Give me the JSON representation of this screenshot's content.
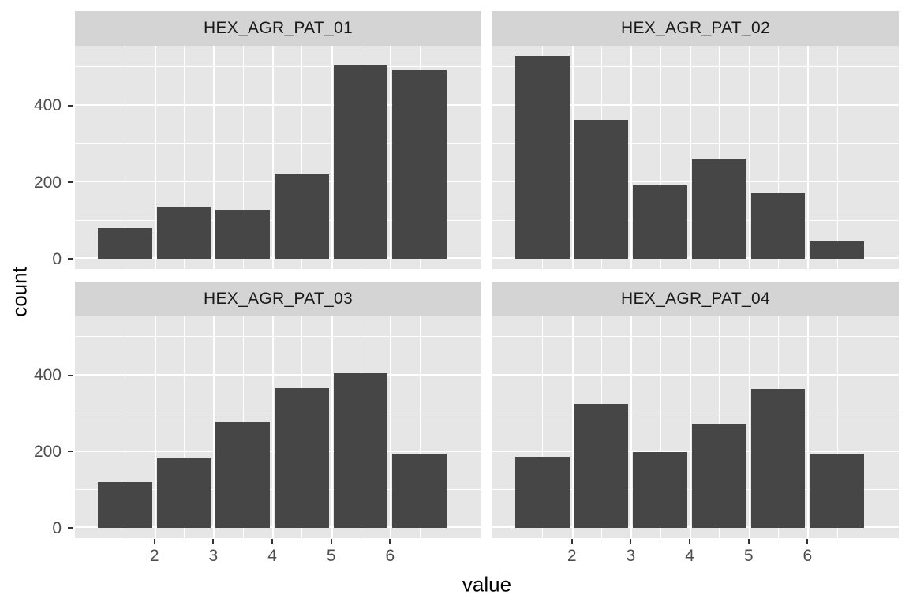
{
  "chart_data": {
    "type": "bar",
    "subtype": "faceted-histogram",
    "title": "",
    "xlabel": "value",
    "ylabel": "count",
    "x_ticks": [
      "2",
      "3",
      "4",
      "5",
      "6"
    ],
    "x_tick_values": [
      2,
      3,
      4,
      5,
      6
    ],
    "x_minor_values": [
      1.5,
      2.5,
      3.5,
      4.5,
      5.5,
      6.5
    ],
    "y_ticks": [
      "0",
      "200",
      "400"
    ],
    "y_tick_values": [
      0,
      200,
      400
    ],
    "y_minor_values": [
      100,
      300,
      500
    ],
    "x_range": [
      0.65,
      7.55
    ],
    "y_range": [
      -26,
      556
    ],
    "bin_centers": [
      1.5,
      2.5,
      3.5,
      4.5,
      5.5,
      6.5
    ],
    "bar_width": 0.92,
    "grid": "white major and minor gridlines on grey panel",
    "legend": "none",
    "facets": [
      {
        "label": "HEX_AGR_PAT_01",
        "values": [
          80,
          137,
          129,
          220,
          505,
          492
        ]
      },
      {
        "label": "HEX_AGR_PAT_02",
        "values": [
          530,
          362,
          192,
          260,
          172,
          47
        ]
      },
      {
        "label": "HEX_AGR_PAT_03",
        "values": [
          121,
          184,
          277,
          367,
          406,
          195
        ]
      },
      {
        "label": "HEX_AGR_PAT_04",
        "values": [
          187,
          324,
          199,
          273,
          365,
          195
        ]
      }
    ]
  },
  "colors": {
    "bar": "#464646",
    "panel_bg": "#E6E6E6",
    "strip_bg": "#D4D4D4",
    "grid": "#FFFFFF",
    "tick_mark": "#333333",
    "tick_label": "#4D4D4D",
    "strip_text": "#1A1A1A",
    "axis_title": "#000000",
    "background": "#FFFFFF"
  }
}
